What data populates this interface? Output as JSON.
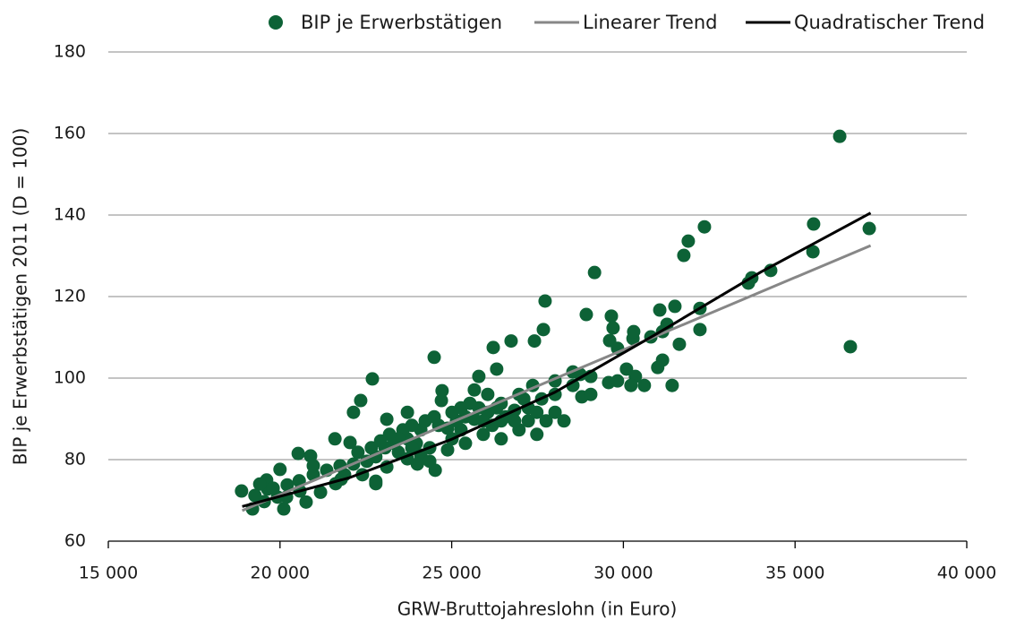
{
  "chart_data": {
    "type": "scatter",
    "xlabel": "GRW-Bruttojahreslohn (in Euro)",
    "ylabel": "BIP je Erwerbstätigen 2011 (D = 100)",
    "xlim": [
      15000,
      40000
    ],
    "xticks": [
      {
        "value": 15000,
        "label": "15 000"
      },
      {
        "value": 20000,
        "label": "20 000"
      },
      {
        "value": 25000,
        "label": "25 000"
      },
      {
        "value": 30000,
        "label": "30 000"
      },
      {
        "value": 35000,
        "label": "35 000"
      },
      {
        "value": 40000,
        "label": "40 000"
      }
    ],
    "ylim": [
      60,
      180
    ],
    "yticks": [
      60,
      80,
      100,
      120,
      140,
      160,
      180
    ],
    "grid": true,
    "legend": "top",
    "series": [
      {
        "name": "BIP je Erwerbstätigen",
        "color": "#0d6236",
        "mode": "markers",
        "x": [
          36300,
          35540,
          35520,
          37160,
          36610,
          32360,
          31890,
          31760,
          29160,
          27720,
          34290,
          33740,
          33640,
          32230,
          32230,
          31500,
          31060,
          31270,
          31140,
          31630,
          31140,
          31420,
          30280,
          30300,
          30800,
          28920,
          29650,
          29700,
          29600,
          29830,
          27670,
          27410,
          26730,
          26210,
          26310,
          25790,
          24490,
          22690,
          22350,
          22140,
          23110,
          23710,
          24720,
          24700,
          21600,
          22040,
          20530,
          20890,
          20000,
          20970,
          18880,
          19200,
          20110,
          19610,
          19640,
          20210,
          20560,
          20760,
          21180,
          21780,
          22400,
          22790,
          23110,
          24520,
          23450,
          23970,
          24360,
          24880,
          25270,
          25660,
          26050,
          26440,
          26830,
          27230,
          27620,
          28010,
          28530,
          29050,
          29570,
          30090,
          30350,
          30220,
          28790,
          28270,
          27480,
          26960,
          26440,
          25920,
          25400,
          25010,
          24620,
          24100,
          23710,
          23320,
          23060,
          22790,
          22530,
          22140,
          21750,
          21360,
          20970,
          20580,
          20190,
          19800,
          19410,
          19270,
          26440,
          26050,
          25660,
          26960,
          27360,
          28010,
          28530,
          28740,
          26830,
          27230,
          25920,
          25400,
          25140,
          26180,
          26570,
          24880,
          24230,
          24490,
          23840,
          23580,
          23450,
          23190,
          22930,
          23840,
          24100,
          24360,
          24000,
          23710,
          22660,
          22270,
          22790,
          21620,
          21880,
          19930,
          19540,
          29050,
          29830,
          30610,
          31000,
          28010,
          27750,
          27480,
          27100,
          26310,
          25790,
          25530,
          25270,
          25010
        ],
        "values": [
          159.3,
          137.8,
          131,
          136.7,
          107.7,
          137.1,
          133.6,
          130.1,
          125.9,
          118.9,
          126.4,
          124.6,
          123.3,
          117.1,
          111.9,
          117.6,
          116.7,
          113.2,
          111.4,
          108.3,
          104.4,
          98.2,
          109.7,
          111.4,
          110.1,
          115.6,
          115.2,
          112.3,
          109.2,
          107.3,
          111.9,
          109.1,
          109.1,
          107.5,
          102.2,
          100.4,
          105.1,
          99.8,
          94.5,
          91.6,
          89.9,
          91.6,
          96.9,
          94.5,
          85.1,
          84.2,
          81.5,
          80.9,
          77.6,
          76.3,
          72.3,
          67.9,
          67.9,
          75,
          72.8,
          73.8,
          74.8,
          69.6,
          72,
          75.2,
          76.3,
          74.7,
          78.2,
          77.4,
          81.8,
          84,
          82.9,
          82.4,
          87.3,
          89.9,
          91.6,
          89.5,
          92.1,
          92.7,
          94.9,
          96,
          98.2,
          100.4,
          98.9,
          102.2,
          100.4,
          98.2,
          95.4,
          89.5,
          86.2,
          87.3,
          85.1,
          86.2,
          84,
          85.1,
          88.4,
          87.3,
          85.1,
          84,
          82.9,
          80.7,
          79.6,
          78.9,
          78.5,
          77.4,
          78.5,
          72.3,
          70.8,
          73,
          74,
          71.2,
          93.8,
          96,
          97.1,
          96,
          98.2,
          99.3,
          101.5,
          100.9,
          89.5,
          89.5,
          89.5,
          90.5,
          89.5,
          88.4,
          90.5,
          87.7,
          89.5,
          90.5,
          88.4,
          87.3,
          85.1,
          86.2,
          84.6,
          82.9,
          81.1,
          79.6,
          78.9,
          80.2,
          82.9,
          81.8,
          74.1,
          74.1,
          76.3,
          70.8,
          69.7,
          96,
          99.3,
          98.2,
          102.6,
          91.6,
          89.5,
          91.6,
          94.9,
          92.7,
          92.7,
          93.8,
          92.7,
          91.6
        ]
      },
      {
        "name": "Linearer Trend",
        "color": "#878787",
        "mode": "line",
        "x": [
          18900,
          37200
        ],
        "values": [
          67.5,
          132.5
        ]
      },
      {
        "name": "Quadratischer Trend",
        "color": "#000000",
        "mode": "line",
        "x": [
          18900,
          22000,
          25000,
          28000,
          31000,
          34000,
          37200
        ],
        "values": [
          68.5,
          75.5,
          85,
          96.5,
          111,
          126,
          140.5
        ]
      }
    ]
  }
}
